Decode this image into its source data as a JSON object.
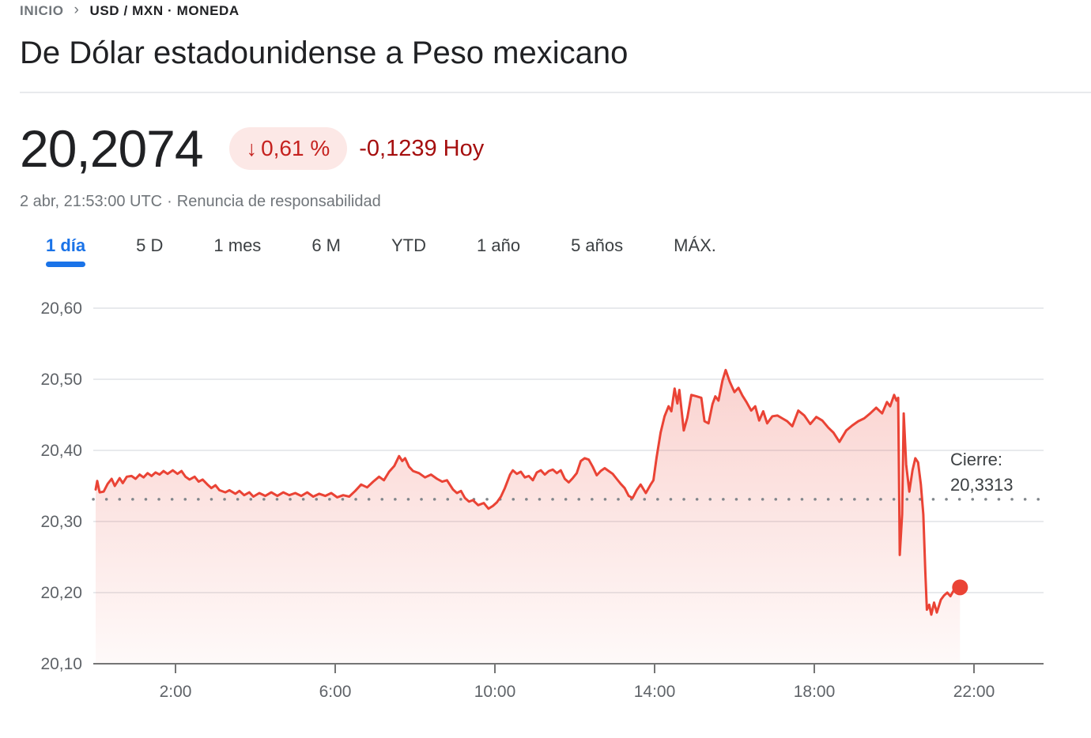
{
  "breadcrumb": {
    "home": "INICIO",
    "separator": "›",
    "current": "USD / MXN · MONEDA"
  },
  "header": {
    "title": "De Dólar estadounidense a Peso mexicano"
  },
  "quote": {
    "price": "20,2074",
    "arrow_glyph": "↓",
    "percent_change": "0,61 %",
    "absolute_change": "-0,1239 Hoy",
    "timestamp": "2 abr, 21:53:00 UTC",
    "dot_separator": "·",
    "disclaimer": "Renuncia de responsabilidad"
  },
  "range_tabs": [
    {
      "label": "1 día",
      "active": true
    },
    {
      "label": "5 D",
      "active": false
    },
    {
      "label": "1 mes",
      "active": false
    },
    {
      "label": "6 M",
      "active": false
    },
    {
      "label": "YTD",
      "active": false
    },
    {
      "label": "1 año",
      "active": false
    },
    {
      "label": "5 años",
      "active": false
    },
    {
      "label": "MÁX.",
      "active": false
    }
  ],
  "colors": {
    "accent_blue": "#1a73e8",
    "line_red": "#ea4335",
    "badge_bg": "#fce8e6",
    "badge_text": "#c5221f",
    "change_text": "#a50e0e",
    "grid": "#e8eaed",
    "axis": "#757575",
    "axis_label": "#5f6368",
    "close_dots": "#80868b"
  },
  "chart_data": {
    "type": "area",
    "series_name": "USD/MXN",
    "x_unit": "hour_of_day_utc",
    "ylim": [
      20.1,
      20.6
    ],
    "xlim_hours": [
      0,
      24
    ],
    "grid": true,
    "line_color": "#ea4335",
    "close_line": {
      "label": "Cierre:",
      "value_label": "20,3313",
      "value": 20.3313
    },
    "last_point": {
      "hour": 21.65,
      "value": 20.2074
    },
    "y_ticks": [
      {
        "value": 20.1,
        "label": "20,10"
      },
      {
        "value": 20.2,
        "label": "20,20"
      },
      {
        "value": 20.3,
        "label": "20,30"
      },
      {
        "value": 20.4,
        "label": "20,40"
      },
      {
        "value": 20.5,
        "label": "20,50"
      },
      {
        "value": 20.6,
        "label": "20,60"
      }
    ],
    "x_ticks": [
      {
        "hour": 2,
        "label": "2:00"
      },
      {
        "hour": 6,
        "label": "6:00"
      },
      {
        "hour": 10,
        "label": "10:00"
      },
      {
        "hour": 14,
        "label": "14:00"
      },
      {
        "hour": 18,
        "label": "18:00"
      },
      {
        "hour": 22,
        "label": "22:00"
      }
    ],
    "points": [
      [
        0.0,
        20.345
      ],
      [
        0.04,
        20.357
      ],
      [
        0.1,
        20.341
      ],
      [
        0.2,
        20.342
      ],
      [
        0.3,
        20.353
      ],
      [
        0.4,
        20.36
      ],
      [
        0.48,
        20.35
      ],
      [
        0.6,
        20.361
      ],
      [
        0.68,
        20.354
      ],
      [
        0.78,
        20.363
      ],
      [
        0.9,
        20.364
      ],
      [
        1.0,
        20.36
      ],
      [
        1.1,
        20.366
      ],
      [
        1.2,
        20.362
      ],
      [
        1.3,
        20.368
      ],
      [
        1.4,
        20.364
      ],
      [
        1.5,
        20.369
      ],
      [
        1.6,
        20.366
      ],
      [
        1.7,
        20.371
      ],
      [
        1.8,
        20.367
      ],
      [
        1.93,
        20.372
      ],
      [
        2.05,
        20.367
      ],
      [
        2.15,
        20.371
      ],
      [
        2.25,
        20.363
      ],
      [
        2.35,
        20.359
      ],
      [
        2.48,
        20.363
      ],
      [
        2.58,
        20.356
      ],
      [
        2.68,
        20.359
      ],
      [
        2.8,
        20.352
      ],
      [
        2.9,
        20.347
      ],
      [
        3.0,
        20.351
      ],
      [
        3.1,
        20.344
      ],
      [
        3.25,
        20.341
      ],
      [
        3.35,
        20.344
      ],
      [
        3.5,
        20.339
      ],
      [
        3.6,
        20.343
      ],
      [
        3.72,
        20.337
      ],
      [
        3.85,
        20.341
      ],
      [
        3.95,
        20.335
      ],
      [
        4.1,
        20.34
      ],
      [
        4.25,
        20.336
      ],
      [
        4.4,
        20.341
      ],
      [
        4.55,
        20.336
      ],
      [
        4.7,
        20.341
      ],
      [
        4.85,
        20.337
      ],
      [
        5.0,
        20.34
      ],
      [
        5.15,
        20.336
      ],
      [
        5.3,
        20.341
      ],
      [
        5.45,
        20.335
      ],
      [
        5.6,
        20.339
      ],
      [
        5.75,
        20.336
      ],
      [
        5.9,
        20.34
      ],
      [
        6.05,
        20.334
      ],
      [
        6.2,
        20.337
      ],
      [
        6.35,
        20.335
      ],
      [
        6.5,
        20.343
      ],
      [
        6.65,
        20.352
      ],
      [
        6.8,
        20.348
      ],
      [
        6.95,
        20.356
      ],
      [
        7.1,
        20.363
      ],
      [
        7.22,
        20.358
      ],
      [
        7.35,
        20.37
      ],
      [
        7.48,
        20.378
      ],
      [
        7.6,
        20.392
      ],
      [
        7.68,
        20.385
      ],
      [
        7.75,
        20.389
      ],
      [
        7.85,
        20.377
      ],
      [
        7.95,
        20.371
      ],
      [
        8.1,
        20.368
      ],
      [
        8.25,
        20.362
      ],
      [
        8.4,
        20.366
      ],
      [
        8.55,
        20.36
      ],
      [
        8.68,
        20.356
      ],
      [
        8.8,
        20.358
      ],
      [
        8.95,
        20.345
      ],
      [
        9.05,
        20.34
      ],
      [
        9.15,
        20.343
      ],
      [
        9.25,
        20.333
      ],
      [
        9.35,
        20.328
      ],
      [
        9.45,
        20.33
      ],
      [
        9.58,
        20.323
      ],
      [
        9.72,
        20.326
      ],
      [
        9.84,
        20.318
      ],
      [
        9.95,
        20.322
      ],
      [
        10.05,
        20.327
      ],
      [
        10.15,
        20.335
      ],
      [
        10.25,
        20.347
      ],
      [
        10.38,
        20.366
      ],
      [
        10.45,
        20.372
      ],
      [
        10.55,
        20.367
      ],
      [
        10.65,
        20.37
      ],
      [
        10.75,
        20.362
      ],
      [
        10.85,
        20.364
      ],
      [
        10.95,
        20.358
      ],
      [
        11.05,
        20.369
      ],
      [
        11.15,
        20.372
      ],
      [
        11.25,
        20.366
      ],
      [
        11.35,
        20.371
      ],
      [
        11.45,
        20.373
      ],
      [
        11.55,
        20.368
      ],
      [
        11.65,
        20.372
      ],
      [
        11.75,
        20.36
      ],
      [
        11.85,
        20.355
      ],
      [
        11.95,
        20.361
      ],
      [
        12.05,
        20.368
      ],
      [
        12.15,
        20.385
      ],
      [
        12.25,
        20.389
      ],
      [
        12.35,
        20.387
      ],
      [
        12.45,
        20.377
      ],
      [
        12.55,
        20.365
      ],
      [
        12.65,
        20.371
      ],
      [
        12.75,
        20.375
      ],
      [
        12.85,
        20.371
      ],
      [
        12.95,
        20.367
      ],
      [
        13.05,
        20.36
      ],
      [
        13.15,
        20.353
      ],
      [
        13.25,
        20.347
      ],
      [
        13.35,
        20.336
      ],
      [
        13.45,
        20.333
      ],
      [
        13.55,
        20.344
      ],
      [
        13.65,
        20.352
      ],
      [
        13.78,
        20.34
      ],
      [
        13.9,
        20.352
      ],
      [
        13.97,
        20.358
      ],
      [
        14.05,
        20.39
      ],
      [
        14.15,
        20.425
      ],
      [
        14.25,
        20.448
      ],
      [
        14.35,
        20.462
      ],
      [
        14.42,
        20.455
      ],
      [
        14.5,
        20.487
      ],
      [
        14.57,
        20.466
      ],
      [
        14.62,
        20.485
      ],
      [
        14.73,
        20.428
      ],
      [
        14.82,
        20.446
      ],
      [
        14.92,
        20.478
      ],
      [
        15.05,
        20.476
      ],
      [
        15.17,
        20.474
      ],
      [
        15.25,
        20.441
      ],
      [
        15.35,
        20.438
      ],
      [
        15.45,
        20.465
      ],
      [
        15.52,
        20.476
      ],
      [
        15.6,
        20.47
      ],
      [
        15.7,
        20.498
      ],
      [
        15.78,
        20.513
      ],
      [
        15.88,
        20.497
      ],
      [
        16.0,
        20.482
      ],
      [
        16.1,
        20.488
      ],
      [
        16.2,
        20.477
      ],
      [
        16.3,
        20.468
      ],
      [
        16.42,
        20.456
      ],
      [
        16.52,
        20.462
      ],
      [
        16.62,
        20.442
      ],
      [
        16.72,
        20.455
      ],
      [
        16.82,
        20.438
      ],
      [
        16.95,
        20.448
      ],
      [
        17.08,
        20.449
      ],
      [
        17.2,
        20.445
      ],
      [
        17.32,
        20.441
      ],
      [
        17.45,
        20.434
      ],
      [
        17.6,
        20.456
      ],
      [
        17.75,
        20.449
      ],
      [
        17.9,
        20.437
      ],
      [
        18.05,
        20.447
      ],
      [
        18.2,
        20.442
      ],
      [
        18.35,
        20.432
      ],
      [
        18.48,
        20.425
      ],
      [
        18.63,
        20.412
      ],
      [
        18.8,
        20.428
      ],
      [
        18.95,
        20.435
      ],
      [
        19.1,
        20.441
      ],
      [
        19.25,
        20.445
      ],
      [
        19.4,
        20.452
      ],
      [
        19.55,
        20.46
      ],
      [
        19.7,
        20.452
      ],
      [
        19.82,
        20.468
      ],
      [
        19.9,
        20.462
      ],
      [
        20.0,
        20.478
      ],
      [
        20.06,
        20.47
      ],
      [
        20.1,
        20.474
      ],
      [
        20.14,
        20.253
      ],
      [
        20.2,
        20.31
      ],
      [
        20.24,
        20.452
      ],
      [
        20.3,
        20.38
      ],
      [
        20.38,
        20.342
      ],
      [
        20.46,
        20.372
      ],
      [
        20.53,
        20.389
      ],
      [
        20.6,
        20.383
      ],
      [
        20.67,
        20.352
      ],
      [
        20.73,
        20.31
      ],
      [
        20.78,
        20.23
      ],
      [
        20.82,
        20.176
      ],
      [
        20.88,
        20.183
      ],
      [
        20.93,
        20.169
      ],
      [
        21.0,
        20.186
      ],
      [
        21.07,
        20.172
      ],
      [
        21.17,
        20.19
      ],
      [
        21.25,
        20.196
      ],
      [
        21.33,
        20.2
      ],
      [
        21.41,
        20.195
      ],
      [
        21.51,
        20.205
      ],
      [
        21.56,
        20.201
      ],
      [
        21.65,
        20.2074
      ]
    ]
  }
}
